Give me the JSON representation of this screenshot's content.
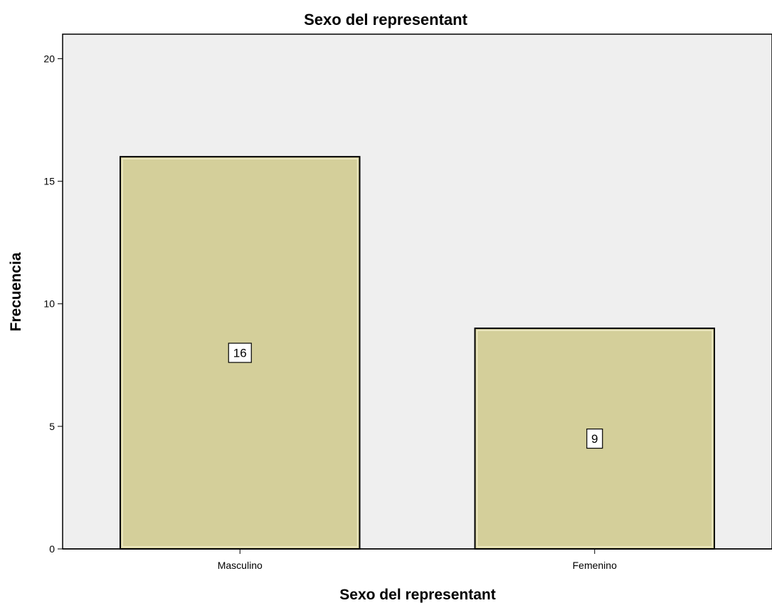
{
  "chart_data": {
    "type": "bar",
    "title": "Sexo del representant",
    "xlabel": "Sexo del representant",
    "ylabel": "Frecuencia",
    "categories": [
      "Masculino",
      "Femenino"
    ],
    "values": [
      16,
      9
    ],
    "data_labels": [
      "16",
      "9"
    ],
    "ylim": [
      0,
      21
    ],
    "yticks": [
      0,
      5,
      10,
      15,
      20
    ],
    "grid": false,
    "legend": "none",
    "colors": {
      "plot_background": "#efefef",
      "bar_fill": "#d4cf9a",
      "bar_stroke": "#000000"
    }
  }
}
